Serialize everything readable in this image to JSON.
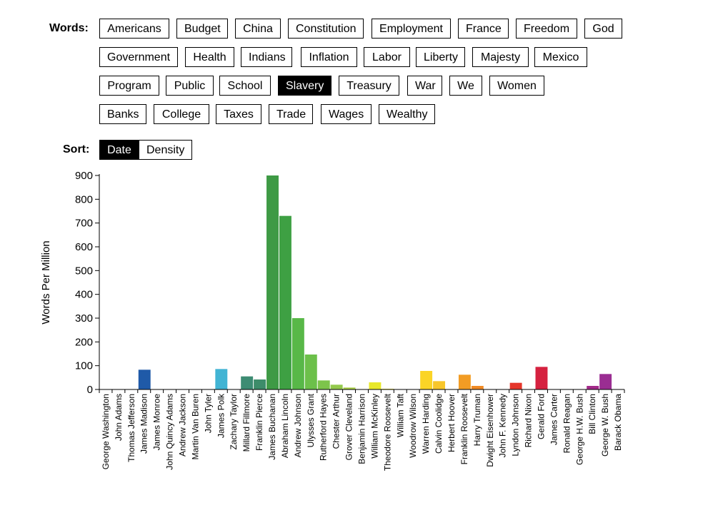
{
  "controls": {
    "words_label": "Words:",
    "sort_label": "Sort:",
    "selected_word": "Slavery",
    "selected_sort": "Date",
    "words": [
      [
        "Americans",
        "Budget",
        "China",
        "Constitution",
        "Employment",
        "France",
        "Freedom",
        "God"
      ],
      [
        "Government",
        "Health",
        "Indians",
        "Inflation",
        "Labor",
        "Liberty",
        "Majesty",
        "Mexico"
      ],
      [
        "Program",
        "Public",
        "School",
        "Slavery",
        "Treasury",
        "War",
        "We",
        "Women"
      ],
      [
        "Banks",
        "College",
        "Taxes",
        "Trade",
        "Wages",
        "Wealthy"
      ]
    ],
    "sort_options": [
      "Date",
      "Density"
    ]
  },
  "chart_data": {
    "type": "bar",
    "ylabel": "Words Per Million",
    "ylim": [
      0,
      900
    ],
    "yticks": [
      0,
      100,
      200,
      300,
      400,
      500,
      600,
      700,
      800,
      900
    ],
    "categories": [
      "George Washington",
      "John Adams",
      "Thomas Jefferson",
      "James Madison",
      "James Monroe",
      "John Quincy Adams",
      "Andrew Jackson",
      "Martin Van Buren",
      "John Tyler",
      "James Polk",
      "Zachary Taylor",
      "Millard Fillmore",
      "Franklin Pierce",
      "James Buchanan",
      "Abraham Lincoln",
      "Andrew Johnson",
      "Ulysses Grant",
      "Rutherford Hayes",
      "Chester Arthur",
      "Grover Cleveland",
      "Benjamin Harrison",
      "William McKinley",
      "Theodore Roosevelt",
      "William Taft",
      "Woodrow Wilson",
      "Warren Harding",
      "Calvin Coolidge",
      "Herbert Hoover",
      "Franklin Roosevelt",
      "Harry Truman",
      "Dwight Eisenhower",
      "John F. Kennedy",
      "Lyndon Johnson",
      "Richard Nixon",
      "Gerald Ford",
      "James Carter",
      "Ronald Reagan",
      "George H.W. Bush",
      "Bill Clinton",
      "George W. Bush",
      "Barack Obama"
    ],
    "values": [
      0,
      0,
      0,
      83,
      0,
      0,
      0,
      0,
      0,
      86,
      0,
      55,
      42,
      900,
      730,
      300,
      147,
      38,
      20,
      8,
      0,
      30,
      3,
      0,
      0,
      78,
      35,
      0,
      62,
      15,
      0,
      0,
      28,
      0,
      95,
      0,
      0,
      0,
      15,
      65,
      0
    ],
    "colors": [
      "#1f5aa8",
      "#1f5aa8",
      "#1f5aa8",
      "#1f5aa8",
      "#1f5aa8",
      "#2f7fc1",
      "#3a9cc9",
      "#3fb1d0",
      "#3fb1d0",
      "#42b4d4",
      "#3a9a8a",
      "#3d8c73",
      "#3d8c6a",
      "#3e9a45",
      "#3ea043",
      "#58b848",
      "#6cc04a",
      "#7dc44b",
      "#93c94c",
      "#a7cc45",
      "#bcd33c",
      "#e8e82a",
      "#efe24a",
      "#f0de2e",
      "#f3d82a",
      "#fbd426",
      "#f8c62a",
      "#f5b22c",
      "#f29c24",
      "#f08a24",
      "#ee7624",
      "#e84b2a",
      "#e5352a",
      "#dd2a34",
      "#d5213f",
      "#c5214c",
      "#b3225a",
      "#a52470",
      "#a32a8a",
      "#9a2d92",
      "#8e2e95"
    ]
  }
}
